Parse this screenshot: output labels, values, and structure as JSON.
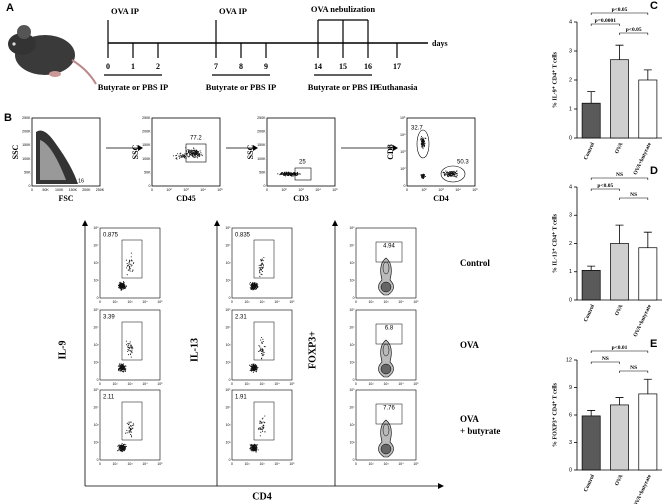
{
  "panel_a": {
    "label": "A",
    "top_labels": [
      "OVA IP",
      "OVA IP",
      "OVA nebulization"
    ],
    "days_label": "days",
    "days": [
      "0",
      "1",
      "2",
      "7",
      "8",
      "9",
      "14",
      "15",
      "16",
      "17"
    ],
    "treatments": [
      "Butyrate or PBS IP",
      "Butyrate or PBS IP",
      "Butyrate or PBS IP"
    ],
    "end_label": "Euthanasia"
  },
  "panel_b": {
    "label": "B",
    "gating": [
      {
        "y_label": "SSC",
        "x_label": "FSC",
        "gates": [
          "16"
        ]
      },
      {
        "y_label": "SSC",
        "x_label": "CD45",
        "gates": [
          "77.2"
        ]
      },
      {
        "y_label": "SSC",
        "x_label": "CD3",
        "gates": [
          "25"
        ]
      },
      {
        "y_label": "CD8",
        "x_label": "CD4",
        "gates": [
          "32.7",
          "50.3"
        ]
      }
    ],
    "linear_ticks": [
      "0",
      "50K",
      "100K",
      "150K",
      "200K",
      "250K"
    ],
    "log_ticks": [
      "0",
      "10²",
      "10³",
      "10⁴",
      "10⁵"
    ],
    "column_labels": [
      "IL-9",
      "IL-13",
      "FOXP3+"
    ],
    "x_label": "CD4",
    "row_labels": [
      [
        "Control"
      ],
      [
        "OVA"
      ],
      [
        "OVA",
        "+ butyrate"
      ]
    ],
    "gates": [
      [
        "0.875",
        "0.835",
        "4.94"
      ],
      [
        "3.39",
        "2.31",
        "6.8"
      ],
      [
        "2.11",
        "1.91",
        "7.76"
      ]
    ]
  },
  "chart_data": [
    {
      "type": "bar",
      "label": "C",
      "y_label": "% IL-9⁺ CD4⁺ T cells",
      "categories": [
        "Control",
        "OVA",
        "OVA+butyrate"
      ],
      "values": [
        1.2,
        2.7,
        2.0
      ],
      "errors": [
        0.4,
        0.5,
        0.35
      ],
      "colors": [
        "#5a5a5a",
        "#cfcfcf",
        "#ffffff"
      ],
      "ylim": [
        0,
        4
      ],
      "yticks": [
        0,
        1,
        2,
        3,
        4
      ],
      "annotations": [
        "p<0.05",
        "p=0.0001",
        "p<0.05"
      ]
    },
    {
      "type": "bar",
      "label": "D",
      "y_label": "% IL-13⁺ CD4⁺ T cells",
      "categories": [
        "Control",
        "OVA",
        "OVA+butyrate"
      ],
      "values": [
        1.05,
        2.0,
        1.85
      ],
      "errors": [
        0.15,
        0.65,
        0.55
      ],
      "colors": [
        "#5a5a5a",
        "#cfcfcf",
        "#ffffff"
      ],
      "ylim": [
        0,
        4
      ],
      "yticks": [
        0,
        1,
        2,
        3,
        4
      ],
      "annotations": [
        "NS",
        "p<0.05",
        "NS"
      ]
    },
    {
      "type": "bar",
      "label": "E",
      "y_label": "% FOXP3⁺ CD4⁺ T cells",
      "categories": [
        "Control",
        "OVA",
        "OVA+butyrate"
      ],
      "values": [
        5.9,
        7.1,
        8.3
      ],
      "errors": [
        0.6,
        0.8,
        1.6
      ],
      "colors": [
        "#5a5a5a",
        "#cfcfcf",
        "#ffffff"
      ],
      "ylim": [
        0,
        12
      ],
      "yticks": [
        0,
        3,
        6,
        9,
        12
      ],
      "annotations": [
        "p<0.01",
        "NS",
        "NS"
      ]
    }
  ]
}
